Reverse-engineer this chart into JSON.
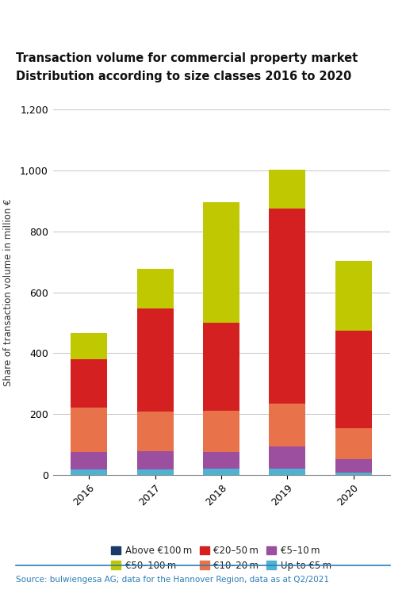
{
  "title_line1": "Transaction volume for commercial property market",
  "title_line2": "Distribution according to size classes 2016 to 2020",
  "years": [
    "2016",
    "2017",
    "2018",
    "2019",
    "2020"
  ],
  "stack_order": [
    "Up to €5 m",
    "€5–10 m",
    "€10–20 m",
    "€20–50 m",
    "€50–100 m",
    "Above €100 m"
  ],
  "stack_colors": [
    "#4eb3d3",
    "#9b4f9e",
    "#e8734a",
    "#d42020",
    "#bfc800",
    "#1a3a6b"
  ],
  "data": {
    "Up to €5 m": [
      18,
      18,
      20,
      22,
      8
    ],
    "€5–10 m": [
      58,
      60,
      55,
      72,
      45
    ],
    "€10–20 m": [
      145,
      130,
      135,
      140,
      100
    ],
    "€20–50 m": [
      160,
      340,
      290,
      640,
      320
    ],
    "€50–100 m": [
      85,
      130,
      395,
      130,
      230
    ],
    "Above €100 m": [
      0,
      0,
      0,
      0,
      0
    ]
  },
  "ylabel": "Share of transaction volume in million €",
  "ylim": [
    0,
    1200
  ],
  "yticks": [
    0,
    200,
    400,
    600,
    800,
    1000,
    1200
  ],
  "source": "Source: bulwiengesa AG; data for the Hannover Region, data as at Q2/2021",
  "legend_order": [
    [
      "Above €100 m",
      "€50–100 m",
      "€20–50 m"
    ],
    [
      "€10–20 m",
      "€5–10 m",
      "Up to €5 m"
    ]
  ],
  "legend_colors_map": {
    "Above €100 m": "#1a3a6b",
    "€50–100 m": "#bfc800",
    "€20–50 m": "#d42020",
    "€10–20 m": "#e8734a",
    "€5–10 m": "#9b4f9e",
    "Up to €5 m": "#4eb3d3"
  },
  "background_color": "#ffffff",
  "bar_width": 0.55
}
